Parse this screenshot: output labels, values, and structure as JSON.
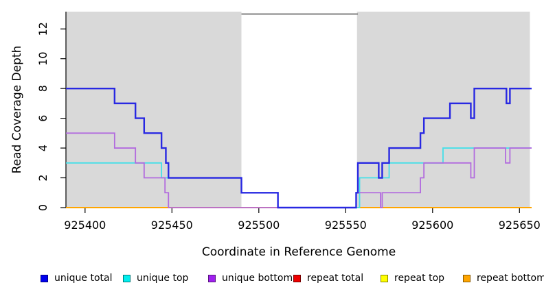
{
  "chart_data": {
    "type": "line",
    "step": true,
    "title": "",
    "xlabel": "Coordinate in Reference Genome",
    "ylabel": "Read Coverage Depth",
    "x_ticks": [
      925400,
      925450,
      925500,
      925550,
      925600,
      925650
    ],
    "y_ticks": [
      0,
      2,
      4,
      6,
      8,
      10,
      12
    ],
    "xlim": [
      925389,
      925657
    ],
    "ylim": [
      0,
      13.16
    ],
    "grid": false,
    "legend_position": "bottom",
    "shade_color": "#d9d9d9",
    "shaded_regions": [
      {
        "name": "left-shaded-region",
        "from": 925389,
        "to": 925490
      },
      {
        "name": "right-shaded-region",
        "from": 925556.5,
        "to": 925656
      }
    ],
    "gap_marker": {
      "from": 925490,
      "to": 925557,
      "depth": 13,
      "color": "#808080",
      "width": 2
    },
    "series": [
      {
        "name": "repeat total",
        "color": "#EE0000",
        "width": 1.5,
        "points": [
          [
            925389,
            0
          ]
        ]
      },
      {
        "name": "repeat top",
        "color": "#FFFF00",
        "width": 1.5,
        "points": [
          [
            925389,
            0
          ]
        ]
      },
      {
        "name": "repeat bottom",
        "color": "#FFA500",
        "width": 2,
        "points": [
          [
            925389,
            0
          ]
        ]
      },
      {
        "name": "unique top",
        "color": "#45DFE8",
        "width": 1.8,
        "points": [
          [
            925389,
            3
          ],
          [
            925444,
            2
          ],
          [
            925490,
            1
          ],
          [
            925511,
            0
          ],
          [
            925558,
            2
          ],
          [
            925575,
            3
          ],
          [
            925606,
            4
          ]
        ]
      },
      {
        "name": "unique bottom",
        "color": "#B26BDE",
        "width": 1.8,
        "points": [
          [
            925389,
            5
          ],
          [
            925417,
            4
          ],
          [
            925429,
            3
          ],
          [
            925434,
            2
          ],
          [
            925446,
            1
          ],
          [
            925448,
            0
          ],
          [
            925556,
            1
          ],
          [
            925570,
            0
          ],
          [
            925571,
            1
          ],
          [
            925593,
            2
          ],
          [
            925595,
            3
          ],
          [
            925622,
            2
          ],
          [
            925624,
            4
          ],
          [
            925642,
            3
          ],
          [
            925644.5,
            4
          ]
        ]
      },
      {
        "name": "unique total",
        "color": "#2828E2",
        "width": 2.4,
        "points": [
          [
            925389,
            8
          ],
          [
            925417,
            7
          ],
          [
            925429,
            6
          ],
          [
            925434,
            5
          ],
          [
            925444,
            4
          ],
          [
            925446.5,
            3
          ],
          [
            925448,
            2
          ],
          [
            925490,
            1
          ],
          [
            925511,
            0
          ],
          [
            925556,
            1
          ],
          [
            925557,
            3
          ],
          [
            925569,
            2
          ],
          [
            925571,
            3
          ],
          [
            925575,
            4
          ],
          [
            925593,
            5
          ],
          [
            925595,
            6
          ],
          [
            925610,
            7
          ],
          [
            925622,
            6
          ],
          [
            925624,
            8
          ],
          [
            925642.5,
            7
          ],
          [
            925644.5,
            8
          ]
        ]
      }
    ],
    "legend": [
      {
        "label": "unique total",
        "fill": "#0000EE",
        "border": "#000080"
      },
      {
        "label": "unique top",
        "fill": "#00EEEE",
        "border": "#007878"
      },
      {
        "label": "unique bottom",
        "fill": "#A020F0",
        "border": "#58157E"
      },
      {
        "label": "repeat total",
        "fill": "#EE0000",
        "border": "#770000"
      },
      {
        "label": "repeat top",
        "fill": "#FFFF00",
        "border": "#858500"
      },
      {
        "label": "repeat bottom",
        "fill": "#FFA500",
        "border": "#8A5A00"
      }
    ]
  }
}
